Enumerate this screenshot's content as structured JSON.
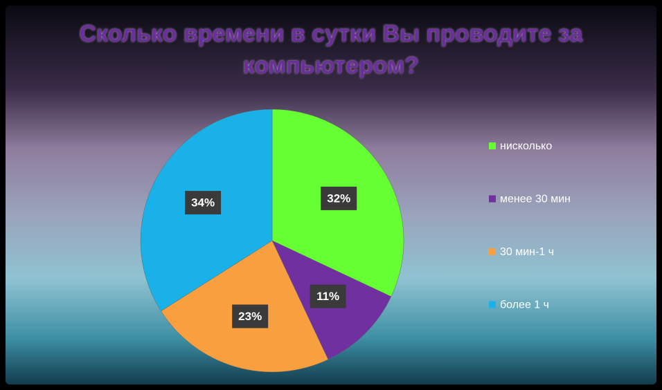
{
  "chart_data": {
    "type": "pie",
    "title": "Сколько времени в сутки Вы проводите за компьютером?",
    "categories": [
      "нисколько",
      "менее 30 мин",
      "30 мин-1 ч",
      "более 1 ч"
    ],
    "values": [
      32,
      11,
      23,
      34
    ],
    "value_labels": [
      "32%",
      "11%",
      "23%",
      "34%"
    ],
    "colors": [
      "#66ff33",
      "#7030a0",
      "#f8a040",
      "#1ab0e8"
    ],
    "legend": "right"
  }
}
